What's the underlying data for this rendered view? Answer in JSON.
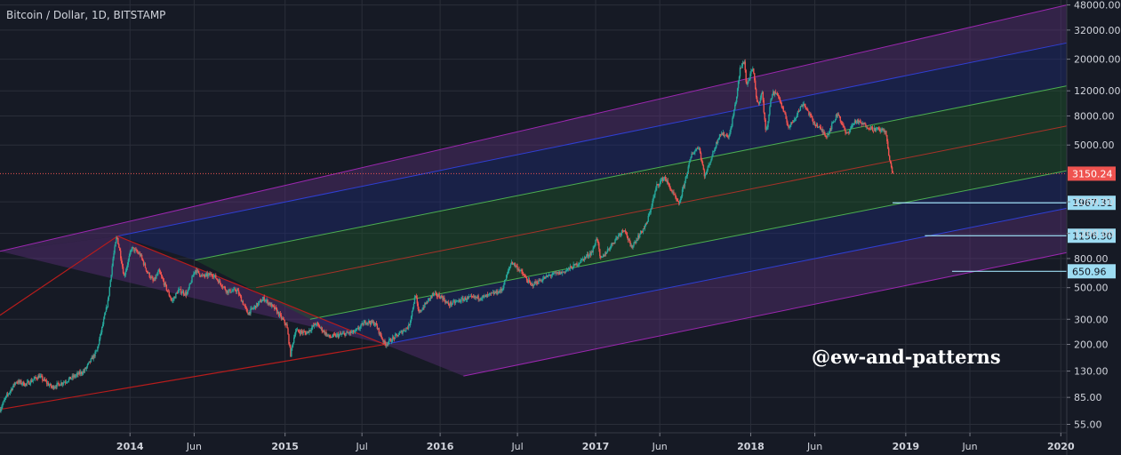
{
  "chart_data": {
    "type": "candlestick",
    "title": "Bitcoin / Dollar, 1D, BITSTAMP",
    "watermark": "@ew-and-patterns",
    "y_scale": "log",
    "ylim": [
      48,
      52000
    ],
    "xlim": [
      "2013-03-01",
      "2020-01-15"
    ],
    "grid": true,
    "y_ticks": [
      48000,
      32000,
      20000,
      12000,
      8000,
      5000,
      2000,
      1200,
      800,
      500,
      300,
      200,
      130,
      85,
      55
    ],
    "y_tick_labels": [
      "48000.00",
      "32000.00",
      "20000.00",
      "12000.00",
      "8000.00",
      "5000.00",
      "2000.00",
      "1200.00",
      "800.00",
      "500.00",
      "300.00",
      "200.00",
      "130.00",
      "85.00",
      "55.00"
    ],
    "x_ticks": [
      {
        "label": "2014",
        "date": "2014-01-01",
        "year": true
      },
      {
        "label": "Jun",
        "date": "2014-06-01",
        "year": false
      },
      {
        "label": "2015",
        "date": "2015-01-01",
        "year": true
      },
      {
        "label": "Jul",
        "date": "2015-07-01",
        "year": false
      },
      {
        "label": "2016",
        "date": "2016-01-01",
        "year": true
      },
      {
        "label": "Jul",
        "date": "2016-07-01",
        "year": false
      },
      {
        "label": "2017",
        "date": "2017-01-01",
        "year": true
      },
      {
        "label": "Jun",
        "date": "2017-06-01",
        "year": false
      },
      {
        "label": "2018",
        "date": "2018-01-01",
        "year": true
      },
      {
        "label": "Jun",
        "date": "2018-06-01",
        "year": false
      },
      {
        "label": "2019",
        "date": "2019-01-01",
        "year": true
      },
      {
        "label": "Jun",
        "date": "2019-06-01",
        "year": false
      },
      {
        "label": "2020",
        "date": "2020-01-01",
        "year": true
      }
    ],
    "price_path": [
      [
        "2013-03-01",
        70
      ],
      [
        "2013-03-15",
        85
      ],
      [
        "2013-04-08",
        110
      ],
      [
        "2013-05-01",
        105
      ],
      [
        "2013-06-01",
        120
      ],
      [
        "2013-07-01",
        100
      ],
      [
        "2013-08-01",
        110
      ],
      [
        "2013-09-15",
        130
      ],
      [
        "2013-10-15",
        180
      ],
      [
        "2013-11-10",
        400
      ],
      [
        "2013-11-22",
        800
      ],
      [
        "2013-12-01",
        1150
      ],
      [
        "2013-12-08",
        900
      ],
      [
        "2013-12-18",
        600
      ],
      [
        "2014-01-05",
        950
      ],
      [
        "2014-01-25",
        850
      ],
      [
        "2014-02-10",
        650
      ],
      [
        "2014-02-25",
        550
      ],
      [
        "2014-03-10",
        650
      ],
      [
        "2014-04-10",
        400
      ],
      [
        "2014-04-25",
        480
      ],
      [
        "2014-05-15",
        450
      ],
      [
        "2014-06-03",
        670
      ],
      [
        "2014-06-20",
        600
      ],
      [
        "2014-07-15",
        620
      ],
      [
        "2014-08-18",
        470
      ],
      [
        "2014-09-10",
        480
      ],
      [
        "2014-10-05",
        330
      ],
      [
        "2014-11-12",
        420
      ],
      [
        "2014-12-10",
        350
      ],
      [
        "2015-01-05",
        270
      ],
      [
        "2015-01-14",
        170
      ],
      [
        "2015-01-25",
        250
      ],
      [
        "2015-02-20",
        240
      ],
      [
        "2015-03-15",
        280
      ],
      [
        "2015-04-15",
        225
      ],
      [
        "2015-05-15",
        235
      ],
      [
        "2015-06-15",
        245
      ],
      [
        "2015-07-10",
        290
      ],
      [
        "2015-08-01",
        280
      ],
      [
        "2015-08-24",
        200
      ],
      [
        "2015-09-25",
        235
      ],
      [
        "2015-10-20",
        270
      ],
      [
        "2015-11-04",
        450
      ],
      [
        "2015-11-11",
        330
      ],
      [
        "2015-12-15",
        450
      ],
      [
        "2016-01-05",
        430
      ],
      [
        "2016-01-20",
        380
      ],
      [
        "2016-03-01",
        420
      ],
      [
        "2016-04-15",
        430
      ],
      [
        "2016-05-25",
        480
      ],
      [
        "2016-06-17",
        760
      ],
      [
        "2016-07-05",
        670
      ],
      [
        "2016-08-02",
        520
      ],
      [
        "2016-09-15",
        610
      ],
      [
        "2016-10-15",
        640
      ],
      [
        "2016-11-15",
        720
      ],
      [
        "2016-12-25",
        900
      ],
      [
        "2017-01-04",
        1150
      ],
      [
        "2017-01-12",
        780
      ],
      [
        "2017-02-25",
        1180
      ],
      [
        "2017-03-10",
        1300
      ],
      [
        "2017-03-25",
        950
      ],
      [
        "2017-05-01",
        1400
      ],
      [
        "2017-05-25",
        2600
      ],
      [
        "2017-06-12",
        2980
      ],
      [
        "2017-07-16",
        1900
      ],
      [
        "2017-08-15",
        4300
      ],
      [
        "2017-09-01",
        4900
      ],
      [
        "2017-09-15",
        3000
      ],
      [
        "2017-10-20",
        6000
      ],
      [
        "2017-11-12",
        5800
      ],
      [
        "2017-11-29",
        11000
      ],
      [
        "2017-12-07",
        17000
      ],
      [
        "2017-12-17",
        19600
      ],
      [
        "2017-12-22",
        13000
      ],
      [
        "2018-01-06",
        17200
      ],
      [
        "2018-01-17",
        9500
      ],
      [
        "2018-01-28",
        11700
      ],
      [
        "2018-02-06",
        6000
      ],
      [
        "2018-02-20",
        11500
      ],
      [
        "2018-03-05",
        11500
      ],
      [
        "2018-04-01",
        6600
      ],
      [
        "2018-05-05",
        9900
      ],
      [
        "2018-05-28",
        7300
      ],
      [
        "2018-06-29",
        5800
      ],
      [
        "2018-07-25",
        8400
      ],
      [
        "2018-08-14",
        5900
      ],
      [
        "2018-09-04",
        7400
      ],
      [
        "2018-10-15",
        6500
      ],
      [
        "2018-11-14",
        6300
      ],
      [
        "2018-11-25",
        3700
      ],
      [
        "2018-12-03",
        3150
      ]
    ],
    "last_price": {
      "value": 3150.24,
      "label": "3150.24",
      "color": "#ef5350"
    },
    "horizontal_levels": [
      {
        "value": 1967.31,
        "label": "1967.31",
        "from": "2018-12-01",
        "color": "#9ddcf2"
      },
      {
        "value": 1156.3,
        "label": "1156.30",
        "from": "2019-02-15",
        "color": "#9ddcf2"
      },
      {
        "value": 650.96,
        "label": "650.96",
        "from": "2019-04-20",
        "color": "#9ddcf2"
      }
    ],
    "trendlines": [
      {
        "name": "triangle-top",
        "color": "#b71c1c",
        "points": [
          [
            "2013-03-01",
            320
          ],
          [
            "2013-12-03",
            1150
          ],
          [
            "2015-08-24",
            200
          ]
        ]
      },
      {
        "name": "triangle-base",
        "color": "#b71c1c",
        "points": [
          [
            "2013-03-01",
            70
          ],
          [
            "2015-08-24",
            200
          ]
        ]
      }
    ],
    "pitchfork": {
      "lines": [
        {
          "name": "outer-upper",
          "color": "#9c27b0",
          "points": [
            [
              "2013-03-01",
              900
            ],
            [
              "2020-01-15",
              48000
            ]
          ]
        },
        {
          "name": "inner-upper",
          "color": "#2f3fd4",
          "points": [
            [
              "2013-12-03",
              1150
            ],
            [
              "2020-01-15",
              26000
            ]
          ]
        },
        {
          "name": "green-upper",
          "color": "#4caf50",
          "points": [
            [
              "2014-06-03",
              780
            ],
            [
              "2020-01-15",
              13000
            ]
          ]
        },
        {
          "name": "median",
          "color": "#a83228",
          "points": [
            [
              "2014-10-25",
              500
            ],
            [
              "2020-01-15",
              6800
            ]
          ]
        },
        {
          "name": "green-lower",
          "color": "#4caf50",
          "points": [
            [
              "2015-03-01",
              300
            ],
            [
              "2020-01-15",
              3300
            ]
          ]
        },
        {
          "name": "inner-lower",
          "color": "#2f3fd4",
          "points": [
            [
              "2015-08-24",
              200
            ],
            [
              "2020-01-15",
              1800
            ]
          ]
        },
        {
          "name": "outer-lower",
          "color": "#9c27b0",
          "points": [
            [
              "2016-02-25",
              120
            ],
            [
              "2020-01-15",
              880
            ]
          ]
        }
      ],
      "bands": [
        {
          "between": [
            "outer-upper",
            "inner-upper"
          ],
          "color": "#5c2f7a"
        },
        {
          "between": [
            "inner-upper",
            "green-upper"
          ],
          "color": "#1f2a78"
        },
        {
          "between": [
            "green-upper",
            "green-lower"
          ],
          "color": "#1e5a2c"
        },
        {
          "between": [
            "green-lower",
            "inner-lower"
          ],
          "color": "#1f2a78"
        },
        {
          "between": [
            "inner-lower",
            "outer-lower"
          ],
          "color": "#5c2f7a"
        }
      ],
      "left_fill": {
        "color": "#5c2f7a",
        "points": [
          [
            "2013-03-01",
            900
          ],
          [
            "2013-12-03",
            1150
          ],
          [
            "2016-02-25",
            120
          ],
          [
            "2015-08-24",
            200
          ]
        ]
      }
    },
    "colors": {
      "up": "#26a69a",
      "down": "#ef5350",
      "grid": "#2a2e39",
      "axis_text": "#d1d4dc"
    }
  }
}
